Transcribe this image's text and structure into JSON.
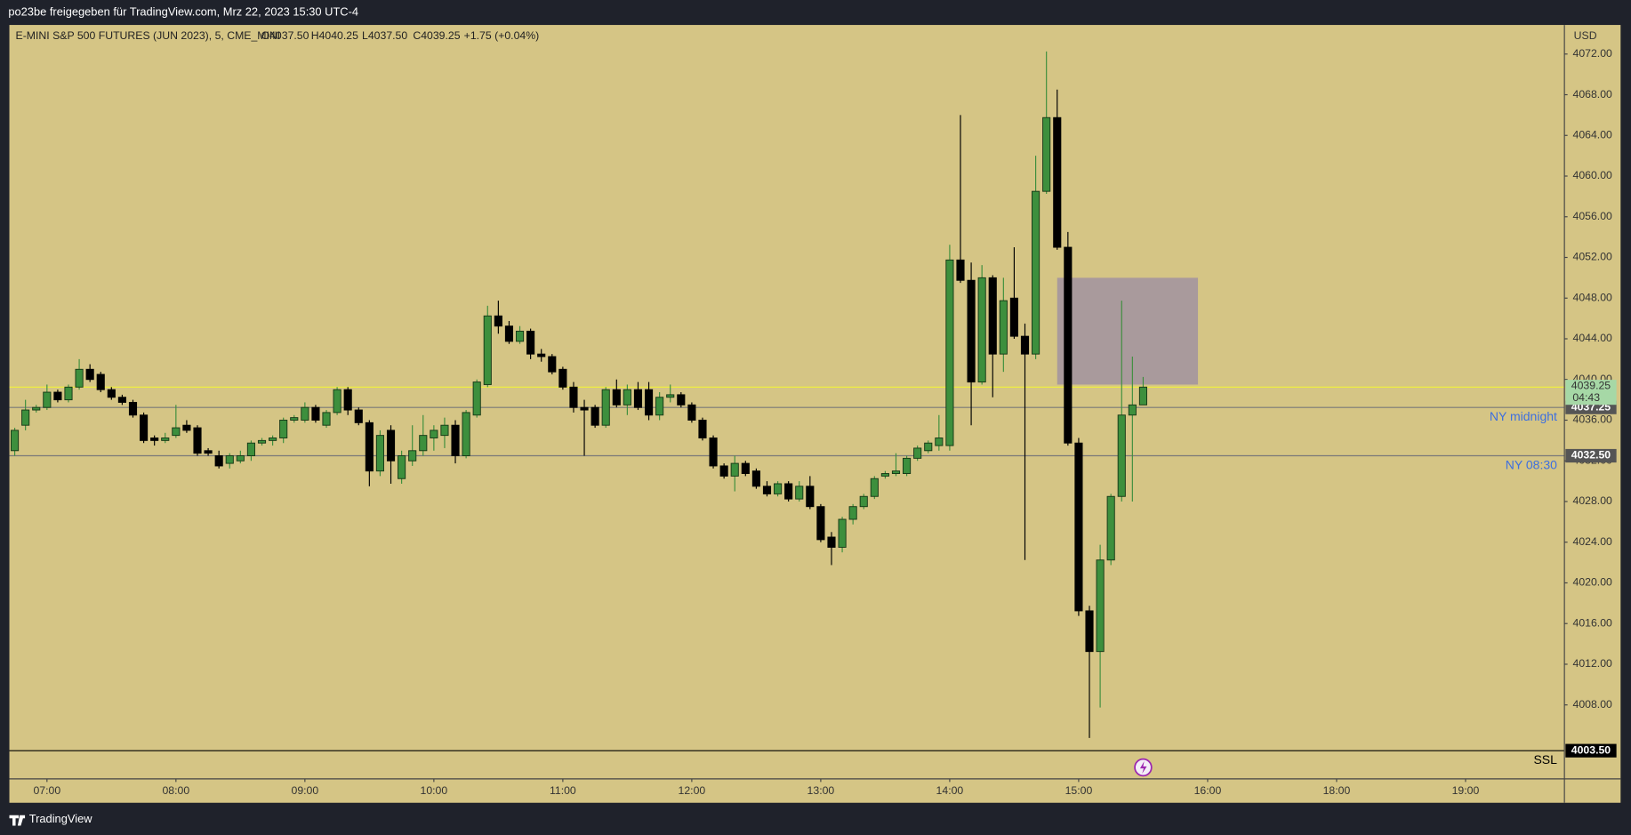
{
  "header": {
    "shared_by": "po23be freigegeben für TradingView.com, Mrz 22, 2023 15:30 UTC-4"
  },
  "footer": {
    "brand": "TradingView"
  },
  "chart_data": {
    "type": "candlestick",
    "title": "E-MINI S&P 500 FUTURES (JUN 2023), 5, CME_MINI",
    "ohlc_legend": {
      "open": "O4037.50",
      "high": "H4040.25",
      "low": "L4037.50",
      "close": "C4039.25",
      "change": "+1.75 (+0.04%)"
    },
    "y_axis_label": "USD",
    "up_color": "#3d8f3d",
    "down_color": "#000000",
    "open": [
      4033.0,
      4035.5,
      4037.0,
      4037.25,
      4038.75,
      4038.0,
      4039.25,
      4041.0,
      4040.5,
      4039.0,
      4038.25,
      4037.75,
      4036.5,
      4034.25,
      4034.0,
      4034.5,
      4035.5,
      4035.25,
      4033.0,
      4032.5,
      4031.75,
      4032.0,
      4032.5,
      4033.75,
      4034.0,
      4034.25,
      4036.0,
      4036.0,
      4037.25,
      4035.5,
      4036.75,
      4039.0,
      4037.0,
      4035.75,
      4031.0,
      4035.0,
      4030.25,
      4032.0,
      4033.0,
      4034.25,
      4034.5,
      4035.5,
      4032.5,
      4036.5,
      4039.5,
      4046.25,
      4045.25,
      4043.75,
      4044.75,
      4042.5,
      4042.25,
      4041.0,
      4039.25,
      4037.25,
      4037.25,
      4035.5,
      4039.0,
      4037.5,
      4039.0,
      4039.0,
      4036.5,
      4038.25,
      4038.5,
      4037.5,
      4036.0,
      4034.25,
      4031.5,
      4030.5,
      4031.75,
      4031.0,
      4029.5,
      4028.75,
      4029.75,
      4028.25,
      4029.5,
      4027.5,
      4024.5,
      4023.5,
      4026.25,
      4027.5,
      4028.5,
      4030.5,
      4030.75,
      4030.75,
      4032.25,
      4033.0,
      4033.5,
      4033.5,
      4051.75,
      4049.75,
      4039.75,
      4050.0,
      4042.5,
      4048.0,
      4044.25,
      4042.5,
      4058.5,
      4065.75,
      4053.0,
      4033.75,
      4017.25,
      4013.25,
      4022.25,
      4028.5,
      4036.5,
      4037.5
    ],
    "high": [
      4035.25,
      4038.0,
      4037.5,
      4039.5,
      4039.0,
      4039.5,
      4042.0,
      4041.5,
      4040.75,
      4039.25,
      4038.5,
      4038.0,
      4036.75,
      4034.5,
      4034.75,
      4037.5,
      4036.0,
      4035.5,
      4033.25,
      4033.0,
      4032.75,
      4033.0,
      4034.0,
      4034.25,
      4034.5,
      4036.25,
      4036.5,
      4037.75,
      4037.5,
      4037.0,
      4039.25,
      4039.25,
      4037.25,
      4036.0,
      4035.0,
      4035.5,
      4033.0,
      4035.5,
      4036.5,
      4035.5,
      4036.25,
      4036.0,
      4037.0,
      4040.0,
      4047.25,
      4047.75,
      4045.75,
      4045.25,
      4045.0,
      4043.0,
      4042.5,
      4041.25,
      4039.75,
      4038.0,
      4037.5,
      4039.25,
      4040.0,
      4039.5,
      4039.75,
      4039.75,
      4038.75,
      4039.5,
      4038.75,
      4037.75,
      4036.25,
      4034.5,
      4031.75,
      4032.5,
      4032.0,
      4031.25,
      4030.0,
      4030.0,
      4030.0,
      4030.0,
      4030.5,
      4027.75,
      4025.0,
      4026.5,
      4027.75,
      4028.75,
      4030.5,
      4031.0,
      4032.75,
      4032.5,
      4033.5,
      4034.0,
      4036.5,
      4053.25,
      4066.0,
      4051.5,
      4051.25,
      4050.25,
      4050.0,
      4053.0,
      4045.5,
      4062.0,
      4072.25,
      4068.5,
      4054.5,
      4034.25,
      4017.75,
      4023.75,
      4028.75,
      4047.75,
      4042.25,
      4040.25
    ],
    "low": [
      4032.5,
      4035.0,
      4036.75,
      4037.0,
      4037.75,
      4037.75,
      4039.0,
      4039.75,
      4038.75,
      4038.0,
      4037.5,
      4036.25,
      4033.75,
      4033.5,
      4033.75,
      4034.25,
      4034.75,
      4032.5,
      4032.5,
      4031.25,
      4031.25,
      4031.75,
      4032.0,
      4033.5,
      4033.5,
      4033.75,
      4035.75,
      4035.75,
      4035.75,
      4035.25,
      4036.5,
      4036.5,
      4035.5,
      4029.5,
      4030.5,
      4029.75,
      4029.75,
      4031.5,
      4032.5,
      4033.0,
      4033.25,
      4031.75,
      4032.25,
      4036.25,
      4039.25,
      4044.5,
      4043.5,
      4043.5,
      4042.0,
      4041.75,
      4040.5,
      4039.0,
      4036.75,
      4032.5,
      4035.25,
      4035.25,
      4037.25,
      4036.5,
      4037.0,
      4036.0,
      4036.0,
      4037.75,
      4037.25,
      4035.75,
      4034.0,
      4031.25,
      4030.25,
      4029.0,
      4030.5,
      4029.25,
      4028.5,
      4028.5,
      4028.0,
      4028.0,
      4027.25,
      4024.0,
      4021.75,
      4023.0,
      4025.75,
      4027.25,
      4028.25,
      4030.25,
      4030.5,
      4030.5,
      4032.0,
      4032.75,
      4033.0,
      4033.0,
      4049.5,
      4035.5,
      4039.5,
      4038.25,
      4040.75,
      4044.0,
      4022.25,
      4042.0,
      4058.25,
      4052.75,
      4033.5,
      4016.75,
      4004.75,
      4007.75,
      4021.75,
      4028.0,
      4028.0,
      4037.5
    ],
    "close": [
      4035.0,
      4037.0,
      4037.25,
      4038.75,
      4038.0,
      4039.25,
      4041.0,
      4040.0,
      4039.0,
      4038.25,
      4037.75,
      4036.5,
      4034.0,
      4034.0,
      4034.25,
      4035.25,
      4035.0,
      4032.75,
      4032.75,
      4031.5,
      4032.5,
      4032.5,
      4033.75,
      4034.0,
      4034.25,
      4036.0,
      4036.25,
      4037.25,
      4036.0,
      4036.75,
      4039.0,
      4037.0,
      4035.75,
      4031.0,
      4034.5,
      4032.0,
      4032.5,
      4033.0,
      4034.5,
      4035.0,
      4035.5,
      4032.5,
      4036.75,
      4039.75,
      4046.25,
      4045.25,
      4043.75,
      4044.75,
      4042.5,
      4042.25,
      4040.75,
      4039.25,
      4037.25,
      4037.0,
      4035.5,
      4039.0,
      4037.5,
      4039.0,
      4037.25,
      4036.5,
      4038.25,
      4038.5,
      4037.5,
      4036.0,
      4034.25,
      4031.5,
      4030.5,
      4031.75,
      4030.75,
      4029.5,
      4028.75,
      4029.75,
      4028.25,
      4029.5,
      4027.5,
      4024.25,
      4023.5,
      4026.25,
      4027.5,
      4028.5,
      4030.25,
      4030.75,
      4031.0,
      4032.25,
      4033.25,
      4033.75,
      4034.25,
      4051.75,
      4049.75,
      4039.75,
      4050.0,
      4042.5,
      4047.75,
      4044.25,
      4042.5,
      4058.5,
      4065.75,
      4053.0,
      4033.75,
      4017.25,
      4013.25,
      4022.25,
      4028.5,
      4036.5,
      4037.5,
      4039.25
    ],
    "xlim": [
      -0.5,
      144.2
    ],
    "xticks": [
      {
        "value": 3,
        "label": "07:00"
      },
      {
        "value": 15,
        "label": "08:00"
      },
      {
        "value": 27,
        "label": "09:00"
      },
      {
        "value": 39,
        "label": "10:00"
      },
      {
        "value": 51,
        "label": "11:00"
      },
      {
        "value": 63,
        "label": "12:00"
      },
      {
        "value": 75,
        "label": "13:00"
      },
      {
        "value": 87,
        "label": "14:00"
      },
      {
        "value": 99,
        "label": "15:00"
      },
      {
        "value": 111,
        "label": "16:00"
      },
      {
        "value": 123,
        "label": "18:00"
      },
      {
        "value": 135,
        "label": "19:00"
      }
    ],
    "ylim": [
      4000.73,
      4074.86
    ],
    "yticks": [
      {
        "value": 4008,
        "label": "4008.00"
      },
      {
        "value": 4012,
        "label": "4012.00"
      },
      {
        "value": 4016,
        "label": "4016.00"
      },
      {
        "value": 4020,
        "label": "4020.00"
      },
      {
        "value": 4024,
        "label": "4024.00"
      },
      {
        "value": 4028,
        "label": "4028.00"
      },
      {
        "value": 4032,
        "label": "4032.00"
      },
      {
        "value": 4036,
        "label": "4036.00"
      },
      {
        "value": 4040,
        "label": "4040.00"
      },
      {
        "value": 4044,
        "label": "4044.00"
      },
      {
        "value": 4048,
        "label": "4048.00"
      },
      {
        "value": 4052,
        "label": "4052.00"
      },
      {
        "value": 4056,
        "label": "4056.00"
      },
      {
        "value": 4060,
        "label": "4060.00"
      },
      {
        "value": 4064,
        "label": "4064.00"
      },
      {
        "value": 4068,
        "label": "4068.00"
      },
      {
        "value": 4072,
        "label": "4072.00"
      }
    ],
    "zone": {
      "x": [
        97,
        110.1
      ],
      "y": [
        4039.5,
        4050
      ],
      "color": "#a99a9c"
    },
    "levels": [
      {
        "name": "NY midnight",
        "value": 4037.25,
        "label": "4037.25",
        "color": "#7a7a7a",
        "text_color": "#3d6fe0",
        "tag_color": "#555555"
      },
      {
        "name": "NY 08:30",
        "value": 4032.5,
        "label": "4032.50",
        "color": "#7a7a7a",
        "text_color": "#3d6fe0",
        "tag_color": "#555555"
      },
      {
        "name": "SSL",
        "value": 4003.5,
        "label": "4003.50",
        "color": "#000000",
        "text_color": "#000000",
        "tag_color": "#000000"
      }
    ],
    "last_price": {
      "value": 4039.25,
      "label": "4039.25",
      "countdown": "04:43",
      "color": "#f2f23a",
      "tag_color": "#a6d8a6"
    }
  }
}
